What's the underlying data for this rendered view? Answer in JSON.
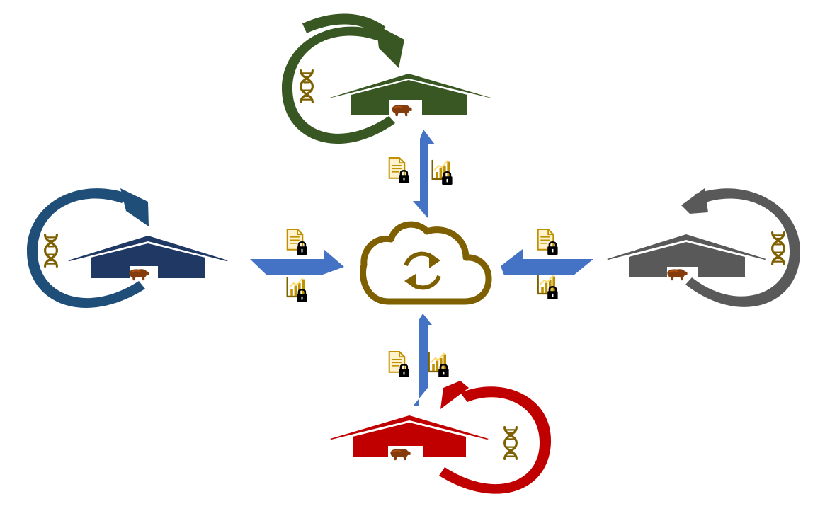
{
  "colors": {
    "background": "#ffffff",
    "hub": "#7f6000",
    "arrow": "#4472c4",
    "gold": "#bf9000",
    "gold_light": "#ffd966",
    "dna": "#7f6000",
    "lock": "#000000",
    "animal": "#843c0c",
    "animal_light": "#c55a11"
  },
  "diagram": {
    "hub": {
      "name": "cloud-sync-hub",
      "icon": "cloud-sync-icon"
    },
    "farms": [
      {
        "name": "farm-north",
        "color": "#385723",
        "cycle_icon": "cycle-arrow-icon",
        "genetics_icon": "dna-icon",
        "building_icon": "barn-icon",
        "animal_icon": "animal-icon"
      },
      {
        "name": "farm-west",
        "color": "#1f4e79",
        "cycle_icon": "cycle-arrow-icon",
        "genetics_icon": "dna-icon",
        "building_icon": "barn-icon",
        "animal_icon": "animal-icon"
      },
      {
        "name": "farm-east",
        "color": "#595959",
        "cycle_icon": "cycle-arrow-icon",
        "genetics_icon": "dna-icon",
        "building_icon": "barn-icon",
        "animal_icon": "animal-icon"
      },
      {
        "name": "farm-south",
        "color": "#c00000",
        "cycle_icon": "cycle-arrow-icon",
        "genetics_icon": "dna-icon",
        "building_icon": "barn-icon",
        "animal_icon": "animal-icon"
      }
    ],
    "exchange_icons": [
      "locked-document-icon",
      "locked-chart-icon"
    ]
  }
}
